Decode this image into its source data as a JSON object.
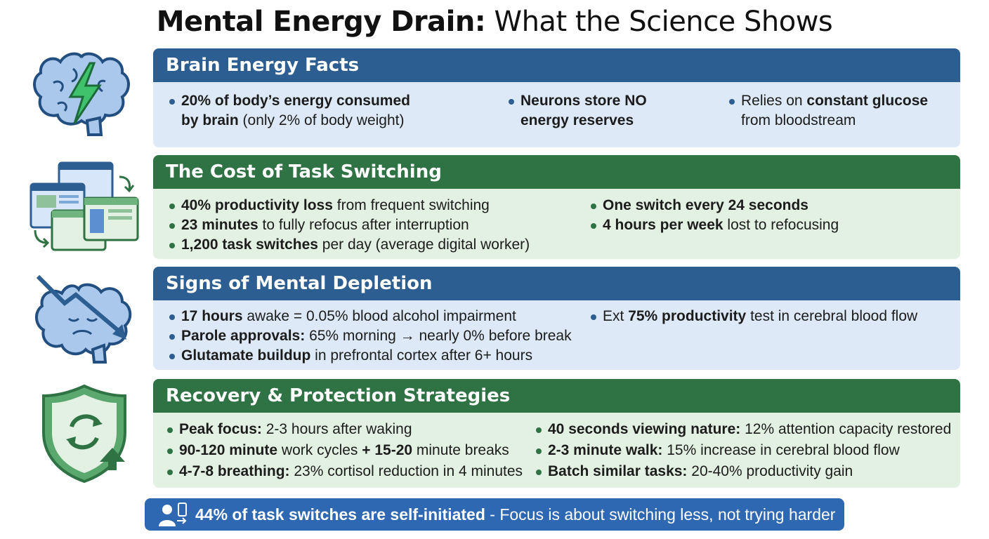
{
  "title": {
    "bold": "Mental Energy Drain:",
    "rest": " What the Science Shows"
  },
  "colors": {
    "blue_header": "#2d5e91",
    "blue_body": "#dde9f7",
    "green_header": "#2f7244",
    "green_body": "#e3f1e2",
    "banner": "#2f68b2"
  },
  "sections": [
    {
      "header": "Brain Energy Facts",
      "icon": "brain-lightning-icon",
      "items": [
        {
          "b": "20% of body’s energy consumed",
          "t": "",
          "b2": "by brain",
          "t2": " (only 2% of body weight)"
        },
        {
          "b": "Neurons store NO",
          "b2": "energy reserves"
        },
        {
          "t": "Relies on ",
          "b": "constant glucose",
          "t2": "from bloodstream"
        }
      ]
    },
    {
      "header": "The Cost of Task Switching",
      "icon": "task-windows-icon",
      "items": [
        {
          "b": "40% productivity loss",
          "t": " from frequent switching"
        },
        {
          "b": "23 minutes",
          "t": " to fully refocus after interruption"
        },
        {
          "b": "1,200 task switches",
          "t": " per day (average digital worker)"
        },
        {
          "b": "One switch every 24 seconds",
          "t": ""
        },
        {
          "b": "4 hours per week",
          "t": " lost to refocusing"
        }
      ]
    },
    {
      "header": "Signs of Mental Depletion",
      "icon": "tired-brain-icon",
      "items": [
        {
          "b": "17 hours",
          "t": " awake = 0.05% blood alcohol impairment"
        },
        {
          "b": "Parole approvals:",
          "t": " 65% morning → nearly 0% before break"
        },
        {
          "b": "Glutamate buildup",
          "t": " in prefrontal cortex after 6+ hours"
        },
        {
          "t": "Ext ",
          "b": "75% productivity",
          "t2": " test in cerebral blood flow"
        }
      ]
    },
    {
      "header": "Recovery & Protection Strategies",
      "icon": "shield-refresh-icon",
      "items": [
        {
          "b": "Peak focus:",
          "t": " 2-3 hours after waking"
        },
        {
          "b": "90-120 minute",
          "t": " work cycles ",
          "b2": "+ 15-20",
          "t2": " minute breaks"
        },
        {
          "b": "4-7-8 breathing:",
          "t": " 23% cortisol reduction in 4 minutes"
        },
        {
          "b": "40 seconds viewing nature:",
          "t": " 12% attention capacity restored"
        },
        {
          "b": "2-3 minute walk:",
          "t": " 15% increase in cerebral blood flow"
        },
        {
          "b": "Batch similar tasks:",
          "t": " 20-40% productivity gain"
        }
      ]
    }
  ],
  "banner": {
    "icon": "person-phone-icon",
    "bold": "44% of task switches are self-initiated",
    "rest": " - Focus is about switching less, not trying harder"
  }
}
